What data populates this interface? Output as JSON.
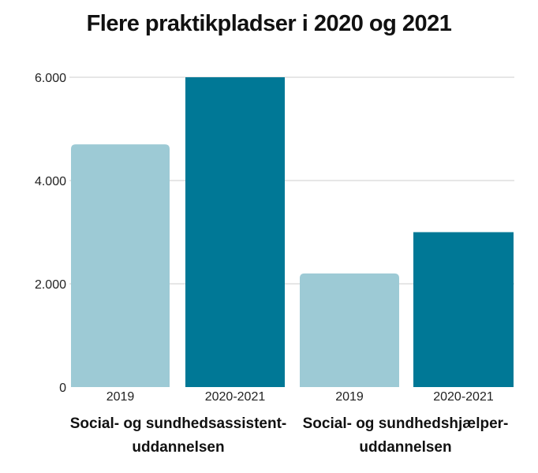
{
  "chart_data": {
    "type": "bar",
    "title": "Flere praktikpladser i 2020 og 2021",
    "ylim": [
      0,
      6000
    ],
    "yticks": [
      0,
      2000,
      4000,
      6000
    ],
    "ytick_labels": [
      "0",
      "2.000",
      "4.000",
      "6.000"
    ],
    "grid": true,
    "groups": [
      {
        "label": "Social- og sundhedsassistent-uddannelsen",
        "label_lines": [
          "Social- og sundhedsassistent-",
          "uddannelsen"
        ],
        "bars": [
          {
            "category": "2019",
            "value": 4700,
            "color": "#9dcad5"
          },
          {
            "category": "2020-2021",
            "value": 6000,
            "color": "#007896"
          }
        ]
      },
      {
        "label": "Social- og sundhedshjælper-uddannelsen",
        "label_lines": [
          "Social- og sundhedshjælper-",
          "uddannelsen"
        ],
        "bars": [
          {
            "category": "2019",
            "value": 2200,
            "color": "#9dcad5"
          },
          {
            "category": "2020-2021",
            "value": 3000,
            "color": "#007896"
          }
        ]
      }
    ]
  }
}
